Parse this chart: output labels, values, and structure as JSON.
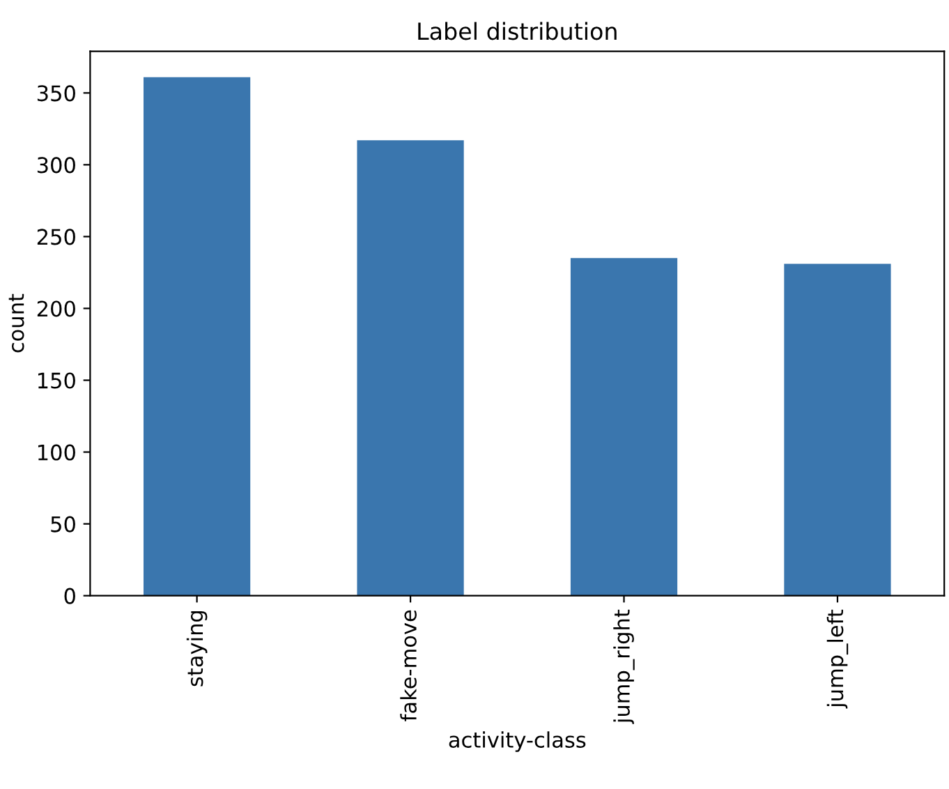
{
  "chart_data": {
    "type": "bar",
    "title": "Label distribution",
    "xlabel": "activity-class",
    "ylabel": "count",
    "categories": [
      "staying",
      "fake-move",
      "jump_right",
      "jump_left"
    ],
    "values": [
      361,
      317,
      235,
      231
    ],
    "color": "#3a76ae",
    "ylim": [
      0,
      379
    ],
    "yticks": [
      0,
      50,
      100,
      150,
      200,
      250,
      300,
      350
    ],
    "grid": false,
    "legend": false
  }
}
